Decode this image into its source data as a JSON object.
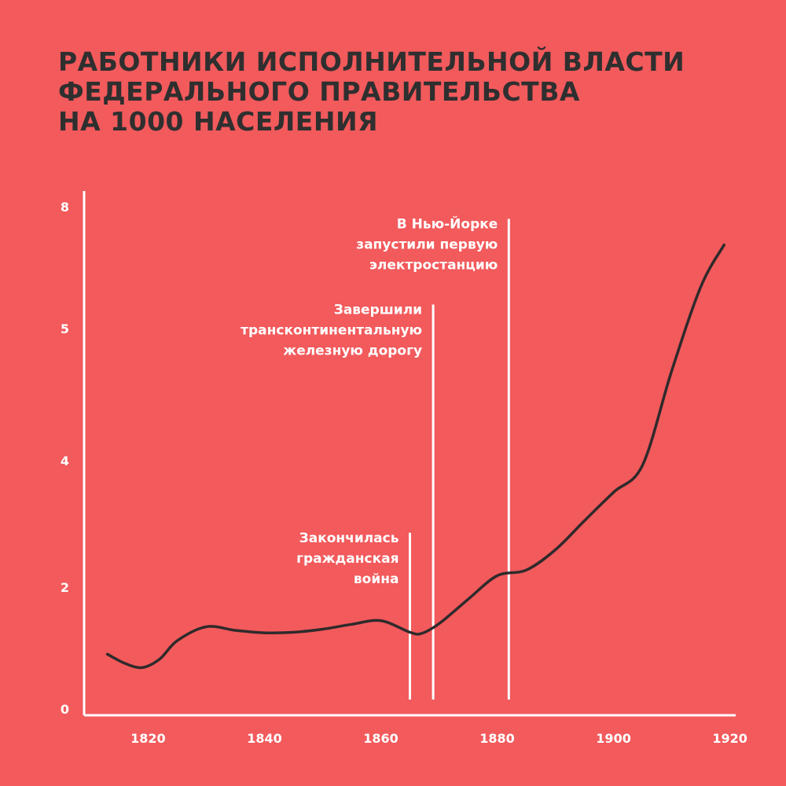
{
  "title_lines": [
    "РАБОТНИКИ ИСПОЛНИТЕЛЬНОЙ ВЛАСТИ",
    "ФЕДЕРАЛЬНОГО ПРАВИТЕЛЬСТВА",
    "НА 1000 НАСЕЛЕНИЯ"
  ],
  "colors": {
    "background": "#f25a5c",
    "line": "#2f2a2b",
    "axis": "#ffffff",
    "title": "#2f2f2f",
    "text": "#ffffff"
  },
  "chart_data": {
    "type": "line",
    "title": "РАБОТНИКИ ИСПОЛНИТЕЛЬНОЙ ВЛАСТИ ФЕДЕРАЛЬНОГО ПРАВИТЕЛЬСТВА НА 1000 НАСЕЛЕНИЯ",
    "xlabel": "",
    "ylabel": "",
    "xlim": [
      1809,
      1921
    ],
    "x_ticks": [
      1820,
      1840,
      1860,
      1880,
      1900,
      1920
    ],
    "y_ticks": [
      {
        "label": "0",
        "value": 0
      },
      {
        "label": "2",
        "value": 2
      },
      {
        "label": "4",
        "value": 4
      },
      {
        "label": "5",
        "value": 5
      },
      {
        "label": "8",
        "value": 8
      }
    ],
    "grid": false,
    "series": [
      {
        "x": [
          1813,
          1816,
          1819,
          1822,
          1825,
          1830,
          1835,
          1840,
          1845,
          1850,
          1855,
          1860,
          1865,
          1867,
          1870,
          1875,
          1880,
          1885,
          1890,
          1895,
          1900,
          1905,
          1910,
          1915,
          1919
        ],
        "y": [
          0.9,
          0.75,
          0.68,
          0.82,
          1.12,
          1.35,
          1.29,
          1.25,
          1.26,
          1.31,
          1.39,
          1.45,
          1.26,
          1.24,
          1.4,
          1.8,
          2.18,
          2.27,
          2.59,
          3.05,
          3.5,
          3.93,
          4.68,
          6.03,
          7.06
        ]
      }
    ],
    "annotations": [
      {
        "year": 1865,
        "y_top": 2.86,
        "lines": [
          "Закончилась",
          "гражданская",
          "война"
        ]
      },
      {
        "year": 1869,
        "y_top": 5.59,
        "lines": [
          "Завершили",
          "трансконтинентальную",
          "железную дорогу"
        ]
      },
      {
        "year": 1882,
        "y_top": 7.7,
        "lines": [
          "В Нью-Йорке",
          "запустили первую",
          "электростанцию"
        ]
      }
    ]
  }
}
